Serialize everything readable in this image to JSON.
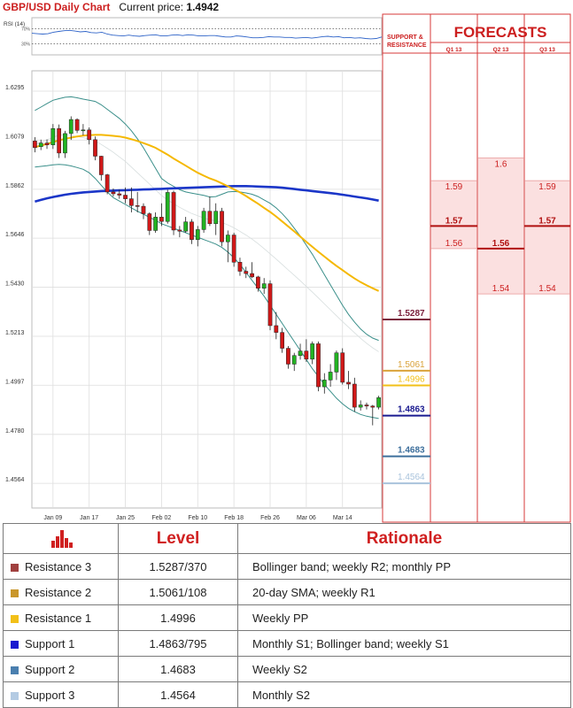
{
  "header": {
    "title": "GBP/USD Daily Chart",
    "price_label": "Current price:",
    "price_value": "1.4942"
  },
  "colors": {
    "bull": "#22b322",
    "bear": "#d01818",
    "bollinger": "#3a8f8a",
    "sma_long": "#1b36c8",
    "sma_short": "#f5b800",
    "rsi": "#2e63c8",
    "title_red": "#cc1f1f",
    "resistance3": "#7a1f3c",
    "resistance2": "#d9a23a",
    "resistance1": "#f2c018",
    "support1": "#1a1a90",
    "support2": "#3d6f9c",
    "support3": "#a9c3dc",
    "forecast_fill": "#fbe0e0",
    "forecast_border": "#d73a3a"
  },
  "chart_data": [
    {
      "type": "line",
      "name": "RSI",
      "title": "RSI (14)",
      "ylim": [
        0,
        100
      ],
      "yticks": [
        "70%",
        "30%"
      ],
      "ytick_values": [
        70,
        30
      ],
      "values": [
        58,
        57,
        56,
        57,
        61,
        63,
        65,
        66,
        64,
        62,
        63,
        60,
        59,
        61,
        56,
        53,
        52,
        51,
        53,
        51,
        50,
        52,
        53,
        54,
        51,
        51,
        53,
        54,
        52,
        54,
        53,
        51,
        51,
        52,
        52,
        50,
        48,
        48,
        51,
        50,
        48,
        46,
        46,
        47,
        49,
        48,
        48,
        47,
        47,
        45,
        46,
        47,
        45,
        47,
        49,
        50,
        48,
        49,
        46,
        47,
        45,
        46,
        44,
        43,
        44,
        48
      ]
    },
    {
      "type": "candlestick",
      "title": "",
      "ylim": [
        1.4455,
        1.6385
      ],
      "y_ticks": [
        "1.6295",
        "1.6079",
        "1.5862",
        "1.5646",
        "1.5430",
        "1.5213",
        "1.4997",
        "1.4780",
        "1.4564"
      ],
      "y_tick_values": [
        1.6295,
        1.6079,
        1.5862,
        1.5646,
        1.543,
        1.5213,
        1.4997,
        1.478,
        1.4564
      ],
      "x_labels": [
        "Jan 09",
        "Jan 17",
        "Jan 25",
        "Feb 02",
        "Feb 10",
        "Feb 18",
        "Feb 26",
        "Mar 06",
        "Mar 14"
      ],
      "x_label_index": [
        3,
        9,
        15,
        21,
        27,
        33,
        39,
        45,
        51
      ],
      "grid": true,
      "candles": [
        [
          1.6075,
          1.6092,
          1.6025,
          1.6046
        ],
        [
          1.605,
          1.6081,
          1.6035,
          1.6066
        ],
        [
          1.6066,
          1.6082,
          1.604,
          1.6058
        ],
        [
          1.6058,
          1.615,
          1.604,
          1.613
        ],
        [
          1.613,
          1.6148,
          1.6,
          1.6022
        ],
        [
          1.6022,
          1.612,
          1.6,
          1.6108
        ],
        [
          1.6108,
          1.6184,
          1.608,
          1.617
        ],
        [
          1.617,
          1.6175,
          1.611,
          1.6122
        ],
        [
          1.6122,
          1.615,
          1.61,
          1.6124
        ],
        [
          1.6124,
          1.6135,
          1.606,
          1.6081
        ],
        [
          1.6081,
          1.6095,
          1.599,
          1.6008
        ],
        [
          1.6008,
          1.601,
          1.59,
          1.5926
        ],
        [
          1.5926,
          1.593,
          1.584,
          1.585
        ],
        [
          1.585,
          1.5866,
          1.583,
          1.5842
        ],
        [
          1.5842,
          1.586,
          1.582,
          1.5836
        ],
        [
          1.5836,
          1.587,
          1.58,
          1.582
        ],
        [
          1.582,
          1.587,
          1.576,
          1.579
        ],
        [
          1.579,
          1.585,
          1.576,
          1.5787
        ],
        [
          1.5787,
          1.58,
          1.573,
          1.5754
        ],
        [
          1.5754,
          1.576,
          1.566,
          1.568
        ],
        [
          1.568,
          1.576,
          1.567,
          1.5739
        ],
        [
          1.5739,
          1.58,
          1.57,
          1.572
        ],
        [
          1.572,
          1.586,
          1.571,
          1.5848
        ],
        [
          1.5848,
          1.5856,
          1.566,
          1.5682
        ],
        [
          1.5682,
          1.57,
          1.565,
          1.5677
        ],
        [
          1.5677,
          1.574,
          1.567,
          1.5718
        ],
        [
          1.5718,
          1.573,
          1.562,
          1.564
        ],
        [
          1.564,
          1.57,
          1.561,
          1.5684
        ],
        [
          1.5684,
          1.578,
          1.567,
          1.5765
        ],
        [
          1.5765,
          1.583,
          1.57,
          1.571
        ],
        [
          1.571,
          1.58,
          1.566,
          1.5765
        ],
        [
          1.5765,
          1.578,
          1.561,
          1.563
        ],
        [
          1.563,
          1.568,
          1.554,
          1.566
        ],
        [
          1.566,
          1.567,
          1.552,
          1.554
        ],
        [
          1.554,
          1.556,
          1.548,
          1.55
        ],
        [
          1.55,
          1.552,
          1.547,
          1.549
        ],
        [
          1.549,
          1.554,
          1.547,
          1.5475
        ],
        [
          1.5475,
          1.548,
          1.541,
          1.5425
        ],
        [
          1.5425,
          1.547,
          1.54,
          1.5445
        ],
        [
          1.5445,
          1.546,
          1.524,
          1.526
        ],
        [
          1.526,
          1.532,
          1.52,
          1.523
        ],
        [
          1.523,
          1.525,
          1.514,
          1.516
        ],
        [
          1.516,
          1.517,
          1.507,
          1.509
        ],
        [
          1.509,
          1.514,
          1.506,
          1.5128
        ],
        [
          1.5128,
          1.518,
          1.511,
          1.5148
        ],
        [
          1.5148,
          1.52,
          1.51,
          1.5112
        ],
        [
          1.5112,
          1.519,
          1.509,
          1.518
        ],
        [
          1.518,
          1.519,
          1.497,
          1.499
        ],
        [
          1.499,
          1.505,
          1.496,
          1.502
        ],
        [
          1.502,
          1.509,
          1.499,
          1.5055
        ],
        [
          1.5055,
          1.515,
          1.502,
          1.514
        ],
        [
          1.514,
          1.516,
          1.5,
          1.501
        ],
        [
          1.501,
          1.506,
          1.498,
          1.5002
        ],
        [
          1.5002,
          1.503,
          1.488,
          1.49
        ],
        [
          1.49,
          1.493,
          1.4885,
          1.491
        ],
        [
          1.491,
          1.492,
          1.489,
          1.4905
        ],
        [
          1.4905,
          1.491,
          1.482,
          1.49
        ],
        [
          1.49,
          1.495,
          1.489,
          1.4942
        ]
      ],
      "sma_long": [
        1.5808,
        1.5815,
        1.5822,
        1.5828,
        1.5833,
        1.5838,
        1.5842,
        1.5845,
        1.5848,
        1.585,
        1.5852,
        1.5854,
        1.5855,
        1.5856,
        1.5857,
        1.5858,
        1.5859,
        1.586,
        1.5861,
        1.5862,
        1.5863,
        1.5864,
        1.5865,
        1.5866,
        1.5867,
        1.5868,
        1.5869,
        1.587,
        1.5871,
        1.5872,
        1.5873,
        1.5874,
        1.5875,
        1.5876,
        1.5876,
        1.5876,
        1.5875,
        1.5874,
        1.5873,
        1.5872,
        1.5871,
        1.5869,
        1.5866,
        1.5863,
        1.586,
        1.5857,
        1.5854,
        1.5851,
        1.5848,
        1.5845,
        1.5842,
        1.5838,
        1.5834,
        1.583,
        1.5826,
        1.5822,
        1.5817,
        1.5812
      ],
      "sma_short": [
        1.6048,
        1.6055,
        1.6062,
        1.607,
        1.6078,
        1.6085,
        1.609,
        1.6095,
        1.6099,
        1.6101,
        1.6102,
        1.6102,
        1.61,
        1.6098,
        1.6095,
        1.609,
        1.6083,
        1.6075,
        1.6066,
        1.6056,
        1.6045,
        1.603,
        1.6015,
        1.5998,
        1.5982,
        1.5966,
        1.595,
        1.5935,
        1.5922,
        1.591,
        1.59,
        1.5888,
        1.5875,
        1.5862,
        1.5848,
        1.5832,
        1.5815,
        1.5798,
        1.578,
        1.5762,
        1.5742,
        1.572,
        1.5698,
        1.5676,
        1.5653,
        1.563,
        1.5608,
        1.5586,
        1.5565,
        1.5544,
        1.5524,
        1.5505,
        1.5486,
        1.5468,
        1.5452,
        1.5438,
        1.5425,
        1.5413
      ],
      "bb_upper": [
        1.621,
        1.6225,
        1.624,
        1.6255,
        1.6262,
        1.6268,
        1.627,
        1.6266,
        1.626,
        1.6255,
        1.625,
        1.6235,
        1.6215,
        1.6195,
        1.6175,
        1.615,
        1.612,
        1.6085,
        1.6045,
        1.6,
        1.5955,
        1.591,
        1.589,
        1.5875,
        1.586,
        1.585,
        1.5845,
        1.584,
        1.5835,
        1.5828,
        1.583,
        1.584,
        1.585,
        1.5852,
        1.585,
        1.5846,
        1.584,
        1.583,
        1.5815,
        1.58,
        1.578,
        1.5755,
        1.5725,
        1.569,
        1.5655,
        1.5615,
        1.5575,
        1.553,
        1.5485,
        1.544,
        1.5395,
        1.535,
        1.531,
        1.5275,
        1.5245,
        1.5222,
        1.5205,
        1.5195
      ],
      "bb_middle": [
        1.606,
        1.607,
        1.608,
        1.6092,
        1.61,
        1.6102,
        1.61,
        1.6095,
        1.609,
        1.6083,
        1.6075,
        1.606,
        1.6043,
        1.6025,
        1.6005,
        1.5985,
        1.596,
        1.5935,
        1.591,
        1.5885,
        1.586,
        1.5835,
        1.5815,
        1.5798,
        1.5782,
        1.5768,
        1.5755,
        1.5745,
        1.5735,
        1.5728,
        1.5722,
        1.5715,
        1.5705,
        1.5692,
        1.5676,
        1.566,
        1.5642,
        1.5622,
        1.56,
        1.5577,
        1.5554,
        1.553,
        1.5506,
        1.5482,
        1.5458,
        1.5433,
        1.5408,
        1.5382,
        1.5356,
        1.533,
        1.5304,
        1.5278,
        1.5253,
        1.5228,
        1.5204,
        1.5182,
        1.5162,
        1.5145
      ],
      "bb_lower": [
        1.596,
        1.5963,
        1.5966,
        1.597,
        1.5972,
        1.597,
        1.5965,
        1.5958,
        1.595,
        1.5935,
        1.591,
        1.588,
        1.585,
        1.5825,
        1.581,
        1.5795,
        1.578,
        1.5765,
        1.5752,
        1.5738,
        1.5725,
        1.571,
        1.57,
        1.569,
        1.568,
        1.567,
        1.566,
        1.565,
        1.564,
        1.563,
        1.562,
        1.5605,
        1.5585,
        1.556,
        1.553,
        1.5495,
        1.546,
        1.5425,
        1.539,
        1.535,
        1.531,
        1.527,
        1.523,
        1.519,
        1.515,
        1.511,
        1.507,
        1.5035,
        1.5,
        1.497,
        1.494,
        1.4915,
        1.4895,
        1.488,
        1.4868,
        1.486,
        1.4855,
        1.485
      ]
    },
    {
      "type": "table",
      "title": "FORECASTS",
      "support_resistance_header": "SUPPORT & RESISTANCE",
      "columns": [
        "Q1 13",
        "Q2 13",
        "Q3 13"
      ],
      "forecasts": [
        {
          "quarter": "Q1 13",
          "high": 1.59,
          "mid": 1.57,
          "low": 1.56,
          "high_label": "1.59",
          "mid_label": "1.57",
          "low_label": "1.56"
        },
        {
          "quarter": "Q2 13",
          "high": 1.6,
          "mid": 1.56,
          "low": 1.54,
          "high_label": "1.6",
          "mid_label": "1.56",
          "low_label": "1.54"
        },
        {
          "quarter": "Q3 13",
          "high": 1.59,
          "mid": 1.57,
          "low": 1.54,
          "high_label": "1.59",
          "mid_label": "1.57",
          "low_label": "1.54"
        }
      ],
      "sr_levels": [
        {
          "label": "1.5287",
          "value": 1.5287,
          "key": "resistance3",
          "bold": true
        },
        {
          "label": "1.5061",
          "value": 1.5061,
          "key": "resistance2",
          "bold": false
        },
        {
          "label": "1.4996",
          "value": 1.4996,
          "key": "resistance1",
          "bold": false
        },
        {
          "label": "1.4863",
          "value": 1.4863,
          "key": "support1",
          "bold": true
        },
        {
          "label": "1.4683",
          "value": 1.4683,
          "key": "support2",
          "bold": true
        },
        {
          "label": "1.4564",
          "value": 1.4564,
          "key": "support3",
          "bold": false
        }
      ]
    }
  ],
  "levels_table": {
    "headers": {
      "level": "Level",
      "rationale": "Rationale"
    },
    "rows": [
      {
        "name": "Resistance 3",
        "level": "1.5287/370",
        "rationale": "Bollinger band; weekly R2; monthly PP",
        "color": "#a0403f"
      },
      {
        "name": "Resistance 2",
        "level": "1.5061/108",
        "rationale": "20-day SMA; weekly R1",
        "color": "#c9962a"
      },
      {
        "name": "Resistance 1",
        "level": "1.4996",
        "rationale": "Weekly PP",
        "color": "#f2c018"
      },
      {
        "name": "Support 1",
        "level": "1.4863/795",
        "rationale": "Monthly S1; Bollinger band; weekly S1",
        "color": "#1a1ad0"
      },
      {
        "name": "Support 2",
        "level": "1.4683",
        "rationale": "Weekly S2",
        "color": "#4a7faf"
      },
      {
        "name": "Support 3",
        "level": "1.4564",
        "rationale": "Monthly S2",
        "color": "#b4cbe3"
      }
    ]
  }
}
